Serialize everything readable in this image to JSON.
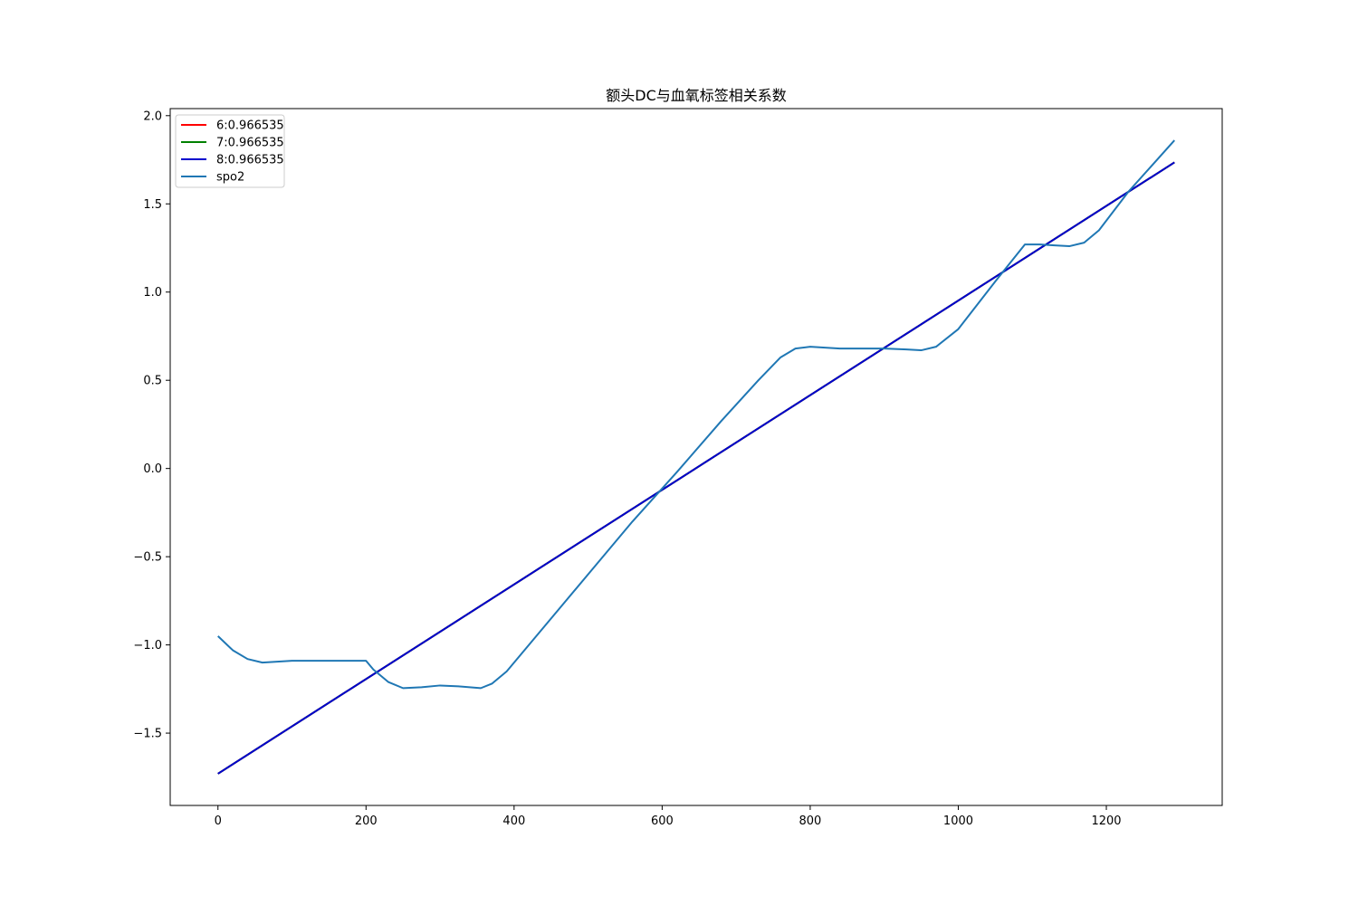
{
  "chart_data": {
    "type": "line",
    "title": "额头DC与血氧标签相关系数",
    "xlabel": "",
    "ylabel": "",
    "xlim": [
      -64.5,
      1356.5
    ],
    "ylim": [
      -1.91,
      2.04
    ],
    "xticks": [
      0,
      200,
      400,
      600,
      800,
      1000,
      1200
    ],
    "xtick_labels": [
      "0",
      "200",
      "400",
      "600",
      "800",
      "1000",
      "1200"
    ],
    "yticks": [
      -1.5,
      -1.0,
      -0.5,
      0.0,
      0.5,
      1.0,
      1.5,
      2.0
    ],
    "ytick_labels": [
      "−1.5",
      "−1.0",
      "−0.5",
      "0.0",
      "0.5",
      "1.0",
      "1.5",
      "2.0"
    ],
    "grid": false,
    "legend_position": "top-left",
    "series": [
      {
        "name": "6:0.966535",
        "color": "#ff0000",
        "x": [
          0,
          1292
        ],
        "y": [
          -1.73,
          1.735
        ]
      },
      {
        "name": "7:0.966535",
        "color": "#008000",
        "x": [
          0,
          1292
        ],
        "y": [
          -1.73,
          1.735
        ]
      },
      {
        "name": "8:0.966535",
        "color": "#0000cd",
        "x": [
          0,
          1292
        ],
        "y": [
          -1.73,
          1.735
        ]
      },
      {
        "name": "spo2",
        "color": "#1f77b4",
        "x": [
          0,
          20,
          40,
          60,
          80,
          100,
          150,
          200,
          210,
          230,
          250,
          275,
          300,
          325,
          355,
          370,
          390,
          420,
          460,
          500,
          560,
          620,
          680,
          730,
          760,
          780,
          800,
          840,
          900,
          930,
          950,
          970,
          1000,
          1050,
          1090,
          1110,
          1130,
          1150,
          1170,
          1190,
          1230,
          1260,
          1292
        ],
        "y": [
          -0.95,
          -1.03,
          -1.08,
          -1.1,
          -1.095,
          -1.09,
          -1.09,
          -1.09,
          -1.14,
          -1.21,
          -1.245,
          -1.24,
          -1.23,
          -1.235,
          -1.245,
          -1.22,
          -1.15,
          -1.0,
          -0.8,
          -0.6,
          -0.3,
          -0.02,
          0.27,
          0.5,
          0.63,
          0.68,
          0.69,
          0.68,
          0.68,
          0.675,
          0.67,
          0.69,
          0.79,
          1.06,
          1.27,
          1.27,
          1.265,
          1.26,
          1.28,
          1.35,
          1.57,
          1.71,
          1.86
        ]
      }
    ]
  }
}
